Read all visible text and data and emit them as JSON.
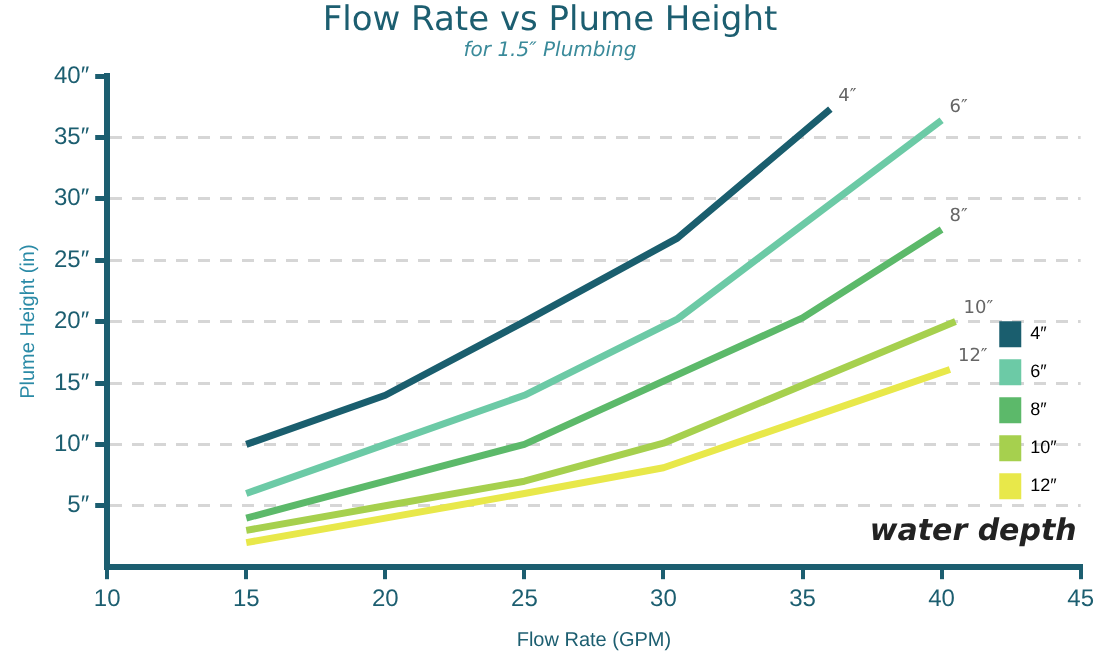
{
  "chart_data": {
    "type": "line",
    "title": "Flow Rate vs Plume Height",
    "subtitle": "for 1.5″ Plumbing",
    "xlabel": "Flow Rate (GPM)",
    "ylabel": "Plume Height (in)",
    "legend_title": "water depth",
    "legend": "bottom right",
    "grid": "y",
    "line_style": "solid",
    "marker": "none",
    "xlim": [
      10,
      45
    ],
    "xticks": [
      10,
      15,
      20,
      25,
      30,
      35,
      40,
      45
    ],
    "ylim": [
      0,
      40
    ],
    "yticks": [
      {
        "value": 5,
        "label": "5″"
      },
      {
        "value": 10,
        "label": "10″"
      },
      {
        "value": 15,
        "label": "15″"
      },
      {
        "value": 20,
        "label": "20″"
      },
      {
        "value": 25,
        "label": "25″"
      },
      {
        "value": 30,
        "label": "30″"
      },
      {
        "value": 35,
        "label": "35″"
      },
      {
        "value": 40,
        "label": "40″"
      }
    ],
    "series": [
      {
        "name": "4″",
        "color": "#1a5e6e",
        "x": [
          15,
          20,
          25,
          30.5,
          36
        ],
        "values": [
          10,
          14,
          20,
          26.8,
          37.3
        ]
      },
      {
        "name": "6″",
        "color": "#6ccaa6",
        "x": [
          15,
          20,
          25,
          30.5,
          40
        ],
        "values": [
          6,
          10,
          14,
          20.2,
          36.4
        ]
      },
      {
        "name": "8″",
        "color": "#5cb96a",
        "x": [
          15,
          20,
          25,
          35,
          40
        ],
        "values": [
          4,
          7,
          10,
          20.3,
          27.5
        ]
      },
      {
        "name": "10″",
        "color": "#a6d04e",
        "x": [
          15,
          20,
          25,
          30,
          40.5
        ],
        "values": [
          3,
          5,
          7,
          10.1,
          20
        ]
      },
      {
        "name": "12″",
        "color": "#e8e84a",
        "x": [
          15,
          20,
          25,
          30,
          40.3
        ],
        "values": [
          2,
          4,
          6,
          8.1,
          16.1
        ]
      }
    ]
  }
}
